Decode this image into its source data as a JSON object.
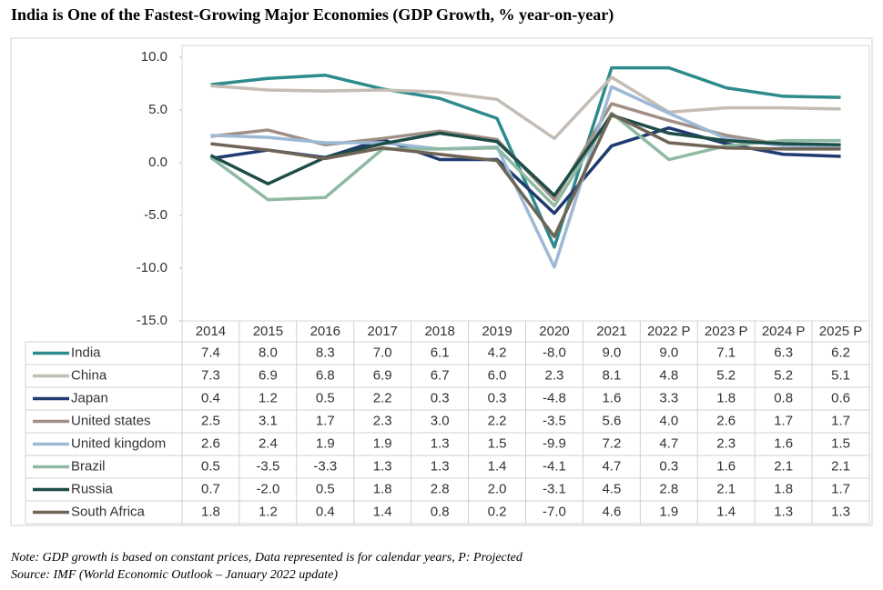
{
  "chart_data": {
    "type": "line",
    "title": "India is One of the Fastest-Growing Major Economies (GDP Growth, % year-on-year)",
    "categories": [
      "2014",
      "2015",
      "2016",
      "2017",
      "2018",
      "2019",
      "2020",
      "2021",
      "2022 P",
      "2023 P",
      "2024 P",
      "2025 P"
    ],
    "ylim": [
      -15,
      10
    ],
    "yticks": [
      {
        "value": 10,
        "label": "10.0"
      },
      {
        "value": 5,
        "label": "5.0"
      },
      {
        "value": 0,
        "label": "0.0"
      },
      {
        "value": -5,
        "label": "-5.0"
      },
      {
        "value": -10,
        "label": "-10.0"
      },
      {
        "value": -15,
        "label": "-15.0"
      }
    ],
    "series": [
      {
        "name": "India",
        "color": "#2e8b8b",
        "values": [
          7.4,
          8.0,
          8.3,
          7.0,
          6.1,
          4.2,
          -8.0,
          9.0,
          9.0,
          7.1,
          6.3,
          6.2
        ],
        "value_labels": [
          "7.4",
          "8.0",
          "8.3",
          "7.0",
          "6.1",
          "4.2",
          "-8.0",
          "9.0",
          "9.0",
          "7.1",
          "6.3",
          "6.2"
        ]
      },
      {
        "name": "China",
        "color": "#c4bdb5",
        "values": [
          7.3,
          6.9,
          6.8,
          6.9,
          6.7,
          6.0,
          2.3,
          8.1,
          4.8,
          5.2,
          5.2,
          5.1
        ],
        "value_labels": [
          "7.3",
          "6.9",
          "6.8",
          "6.9",
          "6.7",
          "6.0",
          "2.3",
          "8.1",
          "4.8",
          "5.2",
          "5.2",
          "5.1"
        ]
      },
      {
        "name": "Japan",
        "color": "#1f3b70",
        "values": [
          0.4,
          1.2,
          0.5,
          2.2,
          0.3,
          0.3,
          -4.8,
          1.6,
          3.3,
          1.8,
          0.8,
          0.6
        ],
        "value_labels": [
          "0.4",
          "1.2",
          "0.5",
          "2.2",
          "0.3",
          "0.3",
          "-4.8",
          "1.6",
          "3.3",
          "1.8",
          "0.8",
          "0.6"
        ]
      },
      {
        "name": "United states",
        "color": "#a08f85",
        "values": [
          2.5,
          3.1,
          1.7,
          2.3,
          3.0,
          2.2,
          -3.5,
          5.6,
          4.0,
          2.6,
          1.7,
          1.7
        ],
        "value_labels": [
          "2.5",
          "3.1",
          "1.7",
          "2.3",
          "3.0",
          "2.2",
          "-3.5",
          "5.6",
          "4.0",
          "2.6",
          "1.7",
          "1.7"
        ]
      },
      {
        "name": "United kingdom",
        "color": "#9db9d6",
        "values": [
          2.6,
          2.4,
          1.9,
          1.9,
          1.3,
          1.5,
          -9.9,
          7.2,
          4.7,
          2.3,
          1.6,
          1.5
        ],
        "value_labels": [
          "2.6",
          "2.4",
          "1.9",
          "1.9",
          "1.3",
          "1.5",
          "-9.9",
          "7.2",
          "4.7",
          "2.3",
          "1.6",
          "1.5"
        ]
      },
      {
        "name": "Brazil",
        "color": "#8fb9a2",
        "values": [
          0.5,
          -3.5,
          -3.3,
          1.3,
          1.3,
          1.4,
          -4.1,
          4.7,
          0.3,
          1.6,
          2.1,
          2.1
        ],
        "value_labels": [
          "0.5",
          "-3.5",
          "-3.3",
          "1.3",
          "1.3",
          "1.4",
          "-4.1",
          "4.7",
          "0.3",
          "1.6",
          "2.1",
          "2.1"
        ]
      },
      {
        "name": "Russia",
        "color": "#1e4d48",
        "values": [
          0.7,
          -2.0,
          0.5,
          1.8,
          2.8,
          2.0,
          -3.1,
          4.5,
          2.8,
          2.1,
          1.8,
          1.7
        ],
        "value_labels": [
          "0.7",
          "-2.0",
          "0.5",
          "1.8",
          "2.8",
          "2.0",
          "-3.1",
          "4.5",
          "2.8",
          "2.1",
          "1.8",
          "1.7"
        ]
      },
      {
        "name": "South Africa",
        "color": "#6f6456",
        "values": [
          1.8,
          1.2,
          0.4,
          1.4,
          0.8,
          0.2,
          -7.0,
          4.6,
          1.9,
          1.4,
          1.3,
          1.3
        ],
        "value_labels": [
          "1.8",
          "1.2",
          "0.4",
          "1.4",
          "0.8",
          "0.2",
          "-7.0",
          "4.6",
          "1.9",
          "1.4",
          "1.3",
          "1.3"
        ]
      }
    ],
    "note": "Note: GDP growth is based on constant prices, Data represented is for calendar years, P: Projected",
    "source": "Source: IMF (World Economic Outlook – January 2022 update)"
  }
}
